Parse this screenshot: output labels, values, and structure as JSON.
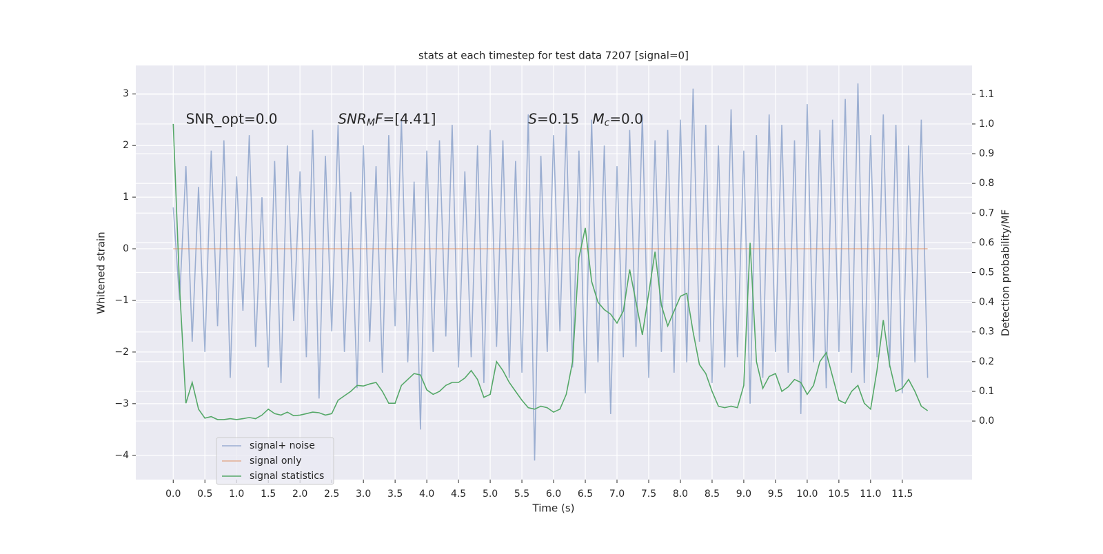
{
  "chart_data": {
    "type": "line",
    "title": "stats at each timestep for test data 7207 [signal=0]",
    "xlabel": "Time (s)",
    "ylabel": "Whitened strain",
    "y2label": "Detection probability/MF",
    "annotations": [
      [
        {
          "text": "SNR_opt=0.0"
        }
      ],
      [
        {
          "text": "SNR",
          "italic": true
        },
        {
          "text": "M",
          "italic": true,
          "sub": true
        },
        {
          "text": "F",
          "italic": true
        },
        {
          "text": "=[4.41]"
        }
      ],
      [
        {
          "text": "S",
          "italic": true
        },
        {
          "text": "=0.15   "
        },
        {
          "text": "M",
          "italic": true
        },
        {
          "text": "c",
          "italic": true,
          "sub": true
        },
        {
          "text": "=0.0"
        }
      ]
    ],
    "x": [
      0,
      0.1,
      0.2,
      0.3,
      0.4,
      0.5,
      0.6,
      0.7,
      0.8,
      0.9,
      1.0,
      1.1,
      1.2,
      1.3,
      1.4,
      1.5,
      1.6,
      1.7,
      1.8,
      1.9,
      2.0,
      2.1,
      2.2,
      2.3,
      2.4,
      2.5,
      2.6,
      2.7,
      2.8,
      2.9,
      3.0,
      3.1,
      3.2,
      3.3,
      3.4,
      3.5,
      3.6,
      3.7,
      3.8,
      3.9,
      4.0,
      4.1,
      4.2,
      4.3,
      4.4,
      4.5,
      4.6,
      4.7,
      4.8,
      4.9,
      5.0,
      5.1,
      5.2,
      5.3,
      5.4,
      5.5,
      5.6,
      5.7,
      5.8,
      5.9,
      6.0,
      6.1,
      6.2,
      6.3,
      6.4,
      6.5,
      6.6,
      6.7,
      6.8,
      6.9,
      7.0,
      7.1,
      7.2,
      7.3,
      7.4,
      7.5,
      7.6,
      7.7,
      7.8,
      7.9,
      8.0,
      8.1,
      8.2,
      8.3,
      8.4,
      8.5,
      8.6,
      8.7,
      8.8,
      8.9,
      9.0,
      9.1,
      9.2,
      9.3,
      9.4,
      9.5,
      9.6,
      9.7,
      9.8,
      9.9,
      10.0,
      10.1,
      10.2,
      10.3,
      10.4,
      10.5,
      10.6,
      10.7,
      10.8,
      10.9,
      11.0,
      11.1,
      11.2,
      11.3,
      11.4,
      11.5,
      11.6,
      11.7,
      11.8,
      11.9
    ],
    "series": [
      {
        "name": "signal+ noise",
        "color": "#4c72b0",
        "opacity": 0.5,
        "values": [
          0.8,
          -1.0,
          1.6,
          -1.8,
          1.2,
          -2.0,
          1.9,
          -1.5,
          2.1,
          -2.5,
          1.4,
          -1.2,
          2.2,
          -1.9,
          1.0,
          -2.3,
          1.7,
          -2.6,
          2.0,
          -1.4,
          1.5,
          -2.1,
          2.3,
          -2.9,
          1.8,
          -1.6,
          2.4,
          -2.0,
          1.1,
          -2.7,
          2.0,
          -1.8,
          1.6,
          -2.4,
          2.2,
          -1.5,
          2.5,
          -2.2,
          1.3,
          -3.5,
          1.9,
          -2.0,
          2.1,
          -1.7,
          2.4,
          -2.3,
          1.5,
          -2.1,
          2.0,
          -2.6,
          2.3,
          -1.9,
          2.1,
          -2.5,
          1.7,
          -2.4,
          2.6,
          -4.1,
          1.8,
          -2.0,
          2.2,
          -1.6,
          2.4,
          -2.3,
          1.9,
          -2.8,
          2.5,
          -2.2,
          2.0,
          -3.2,
          1.6,
          -2.1,
          2.3,
          -1.9,
          2.6,
          -2.5,
          2.1,
          -2.0,
          2.3,
          -2.4,
          2.5,
          -2.2,
          3.1,
          -1.8,
          2.4,
          -2.6,
          2.0,
          -2.3,
          2.7,
          -2.1,
          1.9,
          -3.0,
          2.2,
          -2.5,
          2.6,
          -2.0,
          2.4,
          -2.4,
          2.1,
          -3.2,
          2.8,
          -2.2,
          2.3,
          -2.7,
          2.5,
          -2.0,
          2.9,
          -2.4,
          3.2,
          -2.6,
          2.2,
          -2.1,
          2.6,
          -2.3,
          2.4,
          -2.8,
          2.0,
          -2.2,
          2.5,
          -2.5
        ]
      },
      {
        "name": "signal only",
        "color": "#dd8452",
        "opacity": 0.6,
        "x": [
          0,
          11.9
        ],
        "values": [
          0,
          0
        ]
      },
      {
        "name": "signal statistics",
        "color": "#55a868",
        "opacity": 1,
        "axis": "y2",
        "values": [
          1.0,
          0.45,
          0.06,
          0.13,
          0.04,
          0.01,
          0.015,
          0.005,
          0.005,
          0.008,
          0.005,
          0.008,
          0.012,
          0.008,
          0.02,
          0.04,
          0.025,
          0.02,
          0.03,
          0.018,
          0.02,
          0.025,
          0.03,
          0.028,
          0.02,
          0.025,
          0.07,
          0.085,
          0.1,
          0.12,
          0.118,
          0.125,
          0.13,
          0.1,
          0.06,
          0.06,
          0.12,
          0.14,
          0.16,
          0.155,
          0.105,
          0.09,
          0.1,
          0.12,
          0.13,
          0.13,
          0.145,
          0.17,
          0.14,
          0.08,
          0.09,
          0.2,
          0.17,
          0.13,
          0.1,
          0.07,
          0.045,
          0.04,
          0.05,
          0.045,
          0.03,
          0.04,
          0.09,
          0.2,
          0.55,
          0.65,
          0.47,
          0.4,
          0.375,
          0.36,
          0.33,
          0.37,
          0.51,
          0.4,
          0.29,
          0.43,
          0.57,
          0.39,
          0.32,
          0.37,
          0.42,
          0.43,
          0.3,
          0.19,
          0.16,
          0.1,
          0.05,
          0.045,
          0.05,
          0.045,
          0.12,
          0.6,
          0.2,
          0.11,
          0.15,
          0.16,
          0.1,
          0.115,
          0.14,
          0.13,
          0.09,
          0.12,
          0.2,
          0.23,
          0.15,
          0.07,
          0.06,
          0.1,
          0.12,
          0.06,
          0.04,
          0.17,
          0.34,
          0.19,
          0.1,
          0.11,
          0.14,
          0.1,
          0.05,
          0.035
        ]
      }
    ],
    "xlim": [
      -0.59,
      12.6
    ],
    "xticks": [
      {
        "value": 0,
        "label": "0.0"
      },
      0.5,
      {
        "value": 1,
        "label": "1.0"
      },
      1.5,
      {
        "value": 2,
        "label": "2.0"
      },
      2.5,
      {
        "value": 3,
        "label": "3.0"
      },
      3.5,
      {
        "value": 4,
        "label": "4.0"
      },
      4.5,
      {
        "value": 5,
        "label": "5.0"
      },
      5.5,
      {
        "value": 6,
        "label": "6.0"
      },
      6.5,
      {
        "value": 7,
        "label": "7.0"
      },
      7.5,
      {
        "value": 8,
        "label": "8.0"
      },
      8.5,
      {
        "value": 9,
        "label": "9.0"
      },
      9.5,
      {
        "value": 10,
        "label": "10.0"
      },
      10.5,
      {
        "value": 11,
        "label": "11.0"
      },
      11.5
    ],
    "ylim": [
      -4.47,
      3.55
    ],
    "yticks": [
      {
        "value": -4,
        "label": "−4"
      },
      {
        "value": -3,
        "label": "−3"
      },
      {
        "value": -2,
        "label": "−2"
      },
      {
        "value": -1,
        "label": "−1"
      },
      0,
      1,
      2,
      3
    ],
    "y2lim": [
      -0.197,
      1.197
    ],
    "y2ticks": [
      {
        "value": 0,
        "label": "0.0"
      },
      0.1,
      0.2,
      0.3,
      0.4,
      0.5,
      0.6,
      0.7,
      0.8,
      0.9,
      {
        "value": 1,
        "label": "1.0"
      },
      1.1
    ],
    "grid": true,
    "legend": "lower left"
  }
}
